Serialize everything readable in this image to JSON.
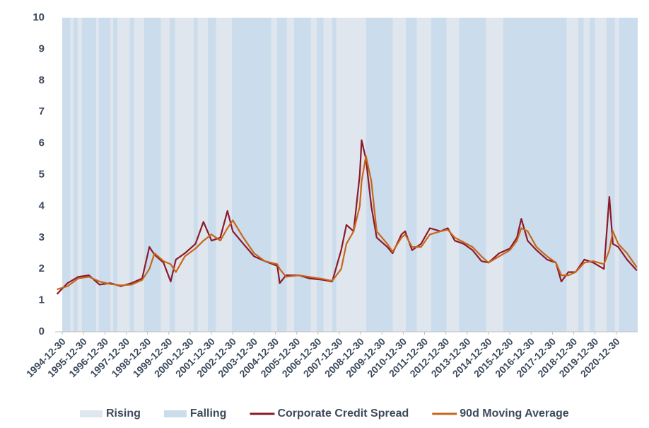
{
  "chart_data": {
    "type": "line",
    "x": [
      "1994-09-30",
      "1995-03-31",
      "1995-09-30",
      "1996-03-31",
      "1996-09-30",
      "1997-03-31",
      "1997-09-30",
      "1998-03-31",
      "1998-09-30",
      "1999-01-31",
      "1999-04-30",
      "1999-09-30",
      "2000-01-31",
      "2000-04-30",
      "2000-09-30",
      "2001-03-31",
      "2001-08-15",
      "2001-12-31",
      "2002-05-31",
      "2002-09-30",
      "2002-12-31",
      "2003-06-30",
      "2003-12-31",
      "2004-06-30",
      "2005-01-31",
      "2005-03-15",
      "2005-06-30",
      "2006-01-31",
      "2006-07-31",
      "2007-03-31",
      "2007-08-31",
      "2008-01-31",
      "2008-04-30",
      "2008-08-31",
      "2008-12-15",
      "2009-01-15",
      "2009-03-31",
      "2009-06-30",
      "2009-09-30",
      "2010-03-31",
      "2010-06-30",
      "2010-11-30",
      "2011-01-31",
      "2011-05-31",
      "2011-10-31",
      "2012-03-31",
      "2012-09-30",
      "2013-01-31",
      "2013-05-31",
      "2013-10-31",
      "2014-03-31",
      "2014-08-31",
      "2014-12-31",
      "2015-06-30",
      "2015-12-31",
      "2016-04-30",
      "2016-07-15",
      "2016-10-31",
      "2017-03-31",
      "2017-09-30",
      "2018-02-28",
      "2018-05-31",
      "2018-09-30",
      "2019-01-31",
      "2019-06-30",
      "2019-11-30",
      "2020-05-31",
      "2020-08-31",
      "2020-10-31",
      "2021-01-31",
      "2021-06-30",
      "2021-12-15"
    ],
    "series": [
      {
        "name": "Corporate Credit Spread",
        "color": "#8b1a2b",
        "values": [
          1.2,
          1.55,
          1.75,
          1.8,
          1.5,
          1.55,
          1.45,
          1.55,
          1.7,
          2.7,
          2.45,
          2.2,
          1.6,
          2.3,
          2.5,
          2.8,
          3.5,
          2.9,
          3.0,
          3.85,
          3.2,
          2.8,
          2.4,
          2.25,
          2.1,
          1.55,
          1.8,
          1.8,
          1.7,
          1.65,
          1.6,
          2.6,
          3.4,
          3.2,
          5.0,
          6.1,
          5.5,
          4.0,
          3.0,
          2.7,
          2.5,
          3.1,
          3.2,
          2.6,
          2.8,
          3.3,
          3.2,
          3.3,
          2.9,
          2.8,
          2.6,
          2.25,
          2.2,
          2.5,
          2.65,
          3.0,
          3.6,
          2.9,
          2.6,
          2.3,
          2.2,
          1.6,
          1.9,
          1.9,
          2.3,
          2.2,
          2.0,
          4.3,
          2.8,
          2.7,
          2.3,
          1.95
        ]
      },
      {
        "name": "90d Moving Average",
        "color": "#c8661a",
        "values": [
          1.35,
          1.45,
          1.7,
          1.75,
          1.6,
          1.52,
          1.48,
          1.5,
          1.65,
          2.0,
          2.5,
          2.25,
          2.15,
          1.9,
          2.4,
          2.65,
          2.9,
          3.1,
          2.9,
          3.3,
          3.55,
          3.0,
          2.5,
          2.25,
          2.15,
          2.0,
          1.75,
          1.8,
          1.75,
          1.68,
          1.62,
          2.0,
          2.8,
          3.2,
          4.0,
          4.8,
          5.6,
          4.8,
          3.2,
          2.8,
          2.55,
          3.0,
          3.1,
          2.7,
          2.7,
          3.1,
          3.2,
          3.25,
          3.0,
          2.85,
          2.7,
          2.4,
          2.2,
          2.4,
          2.6,
          2.9,
          3.3,
          3.2,
          2.7,
          2.4,
          2.2,
          1.8,
          1.8,
          1.9,
          2.2,
          2.25,
          2.15,
          2.6,
          3.2,
          2.8,
          2.5,
          2.05
        ]
      }
    ],
    "bands": [
      {
        "name": "Rising",
        "color": "#dfe6ed",
        "intervals": [
          [
            "1995-05-20",
            "1995-07-10"
          ],
          [
            "1995-09-20",
            "1995-12-01"
          ],
          [
            "1996-08-01",
            "1996-09-15"
          ],
          [
            "1997-04-01",
            "1997-05-20"
          ],
          [
            "1997-08-01",
            "1998-03-01"
          ],
          [
            "1998-05-15",
            "1998-11-01"
          ],
          [
            "1999-08-15",
            "2000-01-10"
          ],
          [
            "2000-04-15",
            "2001-03-01"
          ],
          [
            "2001-05-10",
            "2001-10-25"
          ],
          [
            "2002-03-20",
            "2002-12-15"
          ],
          [
            "2004-10-20",
            "2005-01-25"
          ],
          [
            "2005-07-15",
            "2005-11-15"
          ],
          [
            "2006-08-30",
            "2006-12-05"
          ],
          [
            "2007-04-05",
            "2007-08-30"
          ],
          [
            "2007-11-10",
            "2009-04-01"
          ],
          [
            "2010-07-05",
            "2011-02-10"
          ],
          [
            "2011-08-20",
            "2012-04-20"
          ],
          [
            "2013-01-10",
            "2013-08-15"
          ],
          [
            "2014-11-20",
            "2015-09-10"
          ],
          [
            "2018-09-01",
            "2019-03-15"
          ],
          [
            "2019-06-20",
            "2019-09-25"
          ],
          [
            "2020-01-01",
            "2020-07-15"
          ],
          [
            "2020-12-05",
            "2021-02-15"
          ]
        ]
      },
      {
        "name": "Falling",
        "color": "#cbdcec",
        "intervals": [
          [
            "1994-12-30",
            "1995-05-20"
          ],
          [
            "1995-07-10",
            "1995-09-20"
          ],
          [
            "1995-12-01",
            "1996-08-01"
          ],
          [
            "1996-09-15",
            "1997-04-01"
          ],
          [
            "1997-05-20",
            "1997-08-01"
          ],
          [
            "1998-03-01",
            "1998-05-15"
          ],
          [
            "1998-11-01",
            "1999-08-15"
          ],
          [
            "2000-01-10",
            "2000-04-15"
          ],
          [
            "2001-03-01",
            "2001-05-10"
          ],
          [
            "2001-10-25",
            "2002-03-20"
          ],
          [
            "2002-12-15",
            "2004-10-20"
          ],
          [
            "2005-01-25",
            "2005-07-15"
          ],
          [
            "2005-11-15",
            "2006-08-30"
          ],
          [
            "2006-12-05",
            "2007-04-05"
          ],
          [
            "2007-08-30",
            "2007-11-10"
          ],
          [
            "2009-04-01",
            "2010-07-05"
          ],
          [
            "2011-02-10",
            "2011-08-20"
          ],
          [
            "2012-04-20",
            "2013-01-10"
          ],
          [
            "2013-08-15",
            "2014-11-20"
          ],
          [
            "2015-09-10",
            "2018-09-01"
          ],
          [
            "2019-03-15",
            "2019-06-20"
          ],
          [
            "2019-09-25",
            "2020-01-01"
          ],
          [
            "2020-07-15",
            "2020-12-05"
          ],
          [
            "2021-02-15",
            "2021-12-30"
          ]
        ]
      }
    ],
    "xlim": [
      "1994-08-30",
      "2021-12-30"
    ],
    "xticks": [
      "1994-12-30",
      "1995-12-30",
      "1996-12-30",
      "1997-12-30",
      "1998-12-30",
      "1999-12-30",
      "2000-12-30",
      "2001-12-30",
      "2002-12-30",
      "2003-12-30",
      "2004-12-30",
      "2005-12-30",
      "2006-12-30",
      "2007-12-30",
      "2008-12-30",
      "2009-12-30",
      "2010-12-30",
      "2011-12-30",
      "2012-12-30",
      "2013-12-30",
      "2014-12-30",
      "2015-12-30",
      "2016-12-30",
      "2017-12-30",
      "2018-12-30",
      "2019-12-30",
      "2020-12-30"
    ],
    "ylim": [
      0,
      10
    ],
    "yticks": [
      0,
      1,
      2,
      3,
      4,
      5,
      6,
      7,
      8,
      9,
      10
    ],
    "grid": false,
    "legend": "bottom"
  }
}
